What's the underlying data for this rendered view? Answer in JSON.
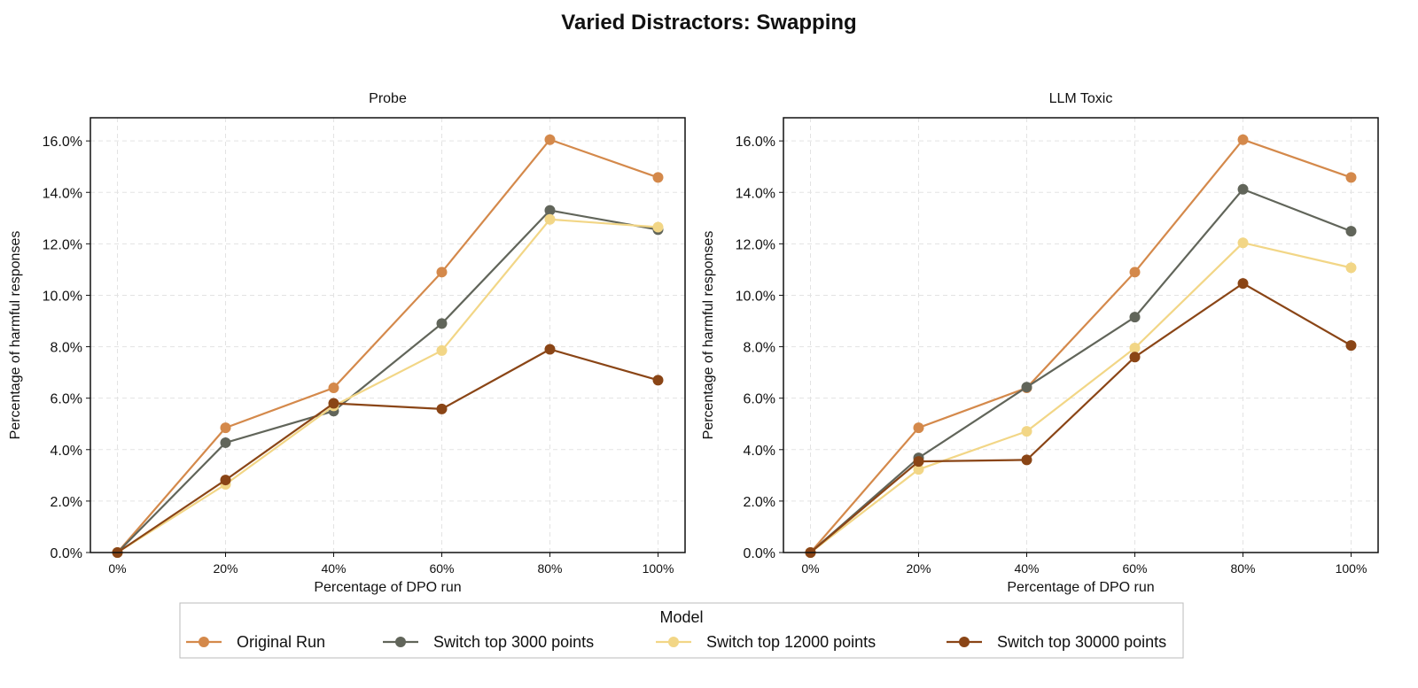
{
  "figure_title": "Varied Distractors: Swapping",
  "legend": {
    "title": "Model",
    "placement": "bottom-center"
  },
  "colors": {
    "Original Run": "#D4894B",
    "Switch top 3000 points": "#61655A",
    "Switch top 12000 points": "#F2D686",
    "Switch top 30000 points": "#8A4516"
  },
  "chart_data": [
    {
      "type": "line",
      "title": "Probe",
      "xlabel": "Percentage of DPO run",
      "ylabel": "Percentage of harmful responses",
      "x": [
        "0%",
        "20%",
        "40%",
        "60%",
        "80%",
        "100%"
      ],
      "x_values": [
        0,
        20,
        40,
        60,
        80,
        100
      ],
      "xlim": [
        -5,
        105
      ],
      "ylim": [
        0,
        16.9
      ],
      "yticks": [
        "0.0%",
        "2.0%",
        "4.0%",
        "6.0%",
        "8.0%",
        "10.0%",
        "12.0%",
        "14.0%",
        "16.0%"
      ],
      "ytick_values": [
        0,
        2,
        4,
        6,
        8,
        10,
        12,
        14,
        16
      ],
      "grid": true,
      "series": [
        {
          "name": "Original Run",
          "values": [
            0,
            4.85,
            6.4,
            10.9,
            16.05,
            14.58
          ]
        },
        {
          "name": "Switch top 3000 points",
          "values": [
            0,
            4.27,
            5.5,
            8.9,
            13.3,
            12.55
          ]
        },
        {
          "name": "Switch top 12000 points",
          "values": [
            0,
            2.65,
            5.7,
            7.85,
            12.95,
            12.65
          ]
        },
        {
          "name": "Switch top 30000 points",
          "values": [
            0,
            2.82,
            5.8,
            5.58,
            7.9,
            6.7
          ]
        }
      ]
    },
    {
      "type": "line",
      "title": "LLM Toxic",
      "xlabel": "Percentage of DPO run",
      "ylabel": "Percentage of harmful responses",
      "x": [
        "0%",
        "20%",
        "40%",
        "60%",
        "80%",
        "100%"
      ],
      "x_values": [
        0,
        20,
        40,
        60,
        80,
        100
      ],
      "xlim": [
        -5,
        105
      ],
      "ylim": [
        0,
        16.9
      ],
      "yticks": [
        "0.0%",
        "2.0%",
        "4.0%",
        "6.0%",
        "8.0%",
        "10.0%",
        "12.0%",
        "14.0%",
        "16.0%"
      ],
      "ytick_values": [
        0,
        2,
        4,
        6,
        8,
        10,
        12,
        14,
        16
      ],
      "grid": true,
      "series": [
        {
          "name": "Original Run",
          "values": [
            0,
            4.85,
            6.4,
            10.9,
            16.05,
            14.58
          ]
        },
        {
          "name": "Switch top 3000 points",
          "values": [
            0,
            3.68,
            6.43,
            9.15,
            14.12,
            12.49
          ]
        },
        {
          "name": "Switch top 12000 points",
          "values": [
            0,
            3.23,
            4.71,
            7.95,
            12.04,
            11.07
          ]
        },
        {
          "name": "Switch top 30000 points",
          "values": [
            0,
            3.54,
            3.6,
            7.6,
            10.46,
            8.05
          ]
        }
      ]
    }
  ]
}
